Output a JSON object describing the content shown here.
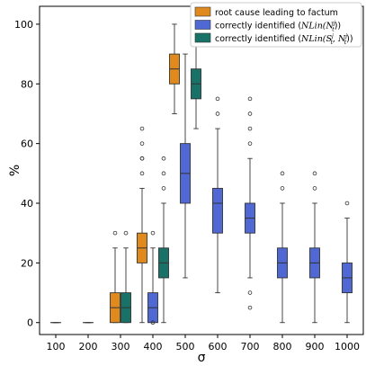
{
  "chart_data": {
    "type": "box",
    "xlabel": "σ",
    "ylabel": "%",
    "ylim": [
      -4,
      106
    ],
    "yticks": [
      0,
      20,
      40,
      60,
      80,
      100
    ],
    "categories": [
      "100",
      "200",
      "300",
      "400",
      "500",
      "600",
      "700",
      "800",
      "900",
      "1000"
    ],
    "reference_line": {
      "y": 100,
      "from_category": "600",
      "style": "dashed"
    },
    "legend": {
      "position": "top-right"
    },
    "series": [
      {
        "key": "root",
        "name": "root cause leading to factum",
        "color": "#E08A1E",
        "boxes": [
          {
            "category": "300",
            "q1": 0,
            "median": 5,
            "q3": 10,
            "whisker_low": 0,
            "whisker_high": 25,
            "outliers": [
              30
            ]
          },
          {
            "category": "400",
            "q1": 20,
            "median": 25,
            "q3": 30,
            "whisker_low": 0,
            "whisker_high": 45,
            "outliers": [
              50,
              55,
              55,
              60,
              65
            ]
          },
          {
            "category": "500",
            "q1": 80,
            "median": 85,
            "q3": 90,
            "whisker_low": 70,
            "whisker_high": 100,
            "outliers": []
          }
        ]
      },
      {
        "key": "nlin",
        "name": "correctly identified (NLin(N_t^j))",
        "label_main": "correctly identified (",
        "label_math": "NLin(N",
        "label_sup": "j",
        "label_sub": "t",
        "label_end": "))",
        "color": "#4F68D4",
        "boxes": [
          {
            "category": "100",
            "q1": 0,
            "median": 0,
            "q3": 0,
            "whisker_low": 0,
            "whisker_high": 0,
            "outliers": []
          },
          {
            "category": "200",
            "q1": 0,
            "median": 0,
            "q3": 0,
            "whisker_low": 0,
            "whisker_high": 0,
            "outliers": []
          },
          {
            "category": "400",
            "q1": 0,
            "median": 5,
            "q3": 10,
            "whisker_low": 0,
            "whisker_high": 25,
            "outliers": [
              0,
              30
            ]
          },
          {
            "category": "500",
            "q1": 40,
            "median": 50,
            "q3": 60,
            "whisker_low": 15,
            "whisker_high": 90,
            "outliers": []
          },
          {
            "category": "600",
            "q1": 30,
            "median": 40,
            "q3": 45,
            "whisker_low": 10,
            "whisker_high": 65,
            "outliers": [
              70,
              75
            ]
          },
          {
            "category": "700",
            "q1": 30,
            "median": 35,
            "q3": 40,
            "whisker_low": 15,
            "whisker_high": 55,
            "outliers": [
              5,
              10,
              60,
              65,
              70,
              75
            ]
          },
          {
            "category": "800",
            "q1": 15,
            "median": 20,
            "q3": 25,
            "whisker_low": 0,
            "whisker_high": 40,
            "outliers": [
              45,
              50
            ]
          },
          {
            "category": "900",
            "q1": 15,
            "median": 20,
            "q3": 25,
            "whisker_low": 0,
            "whisker_high": 40,
            "outliers": [
              45,
              50
            ]
          },
          {
            "category": "1000",
            "q1": 10,
            "median": 15,
            "q3": 20,
            "whisker_low": 0,
            "whisker_high": 35,
            "outliers": [
              40
            ]
          }
        ]
      },
      {
        "key": "nlins",
        "name": "correctly identified (NLin(S_t^j, N_t^j))",
        "label_main": "correctly identified (",
        "label_math": "NLin(S",
        "label_sup": "j",
        "label_sub": "t",
        "label_mid": ", N",
        "label_sup2": "j",
        "label_sub2": "t",
        "label_end": "))",
        "color": "#187268",
        "boxes": [
          {
            "category": "300",
            "q1": 0,
            "median": 5,
            "q3": 10,
            "whisker_low": 0,
            "whisker_high": 25,
            "outliers": [
              30
            ]
          },
          {
            "category": "400",
            "q1": 15,
            "median": 20,
            "q3": 25,
            "whisker_low": 0,
            "whisker_high": 40,
            "outliers": [
              45,
              50,
              55
            ]
          },
          {
            "category": "500",
            "q1": 75,
            "median": 80,
            "q3": 85,
            "whisker_low": 65,
            "whisker_high": 100,
            "outliers": []
          }
        ]
      }
    ]
  }
}
